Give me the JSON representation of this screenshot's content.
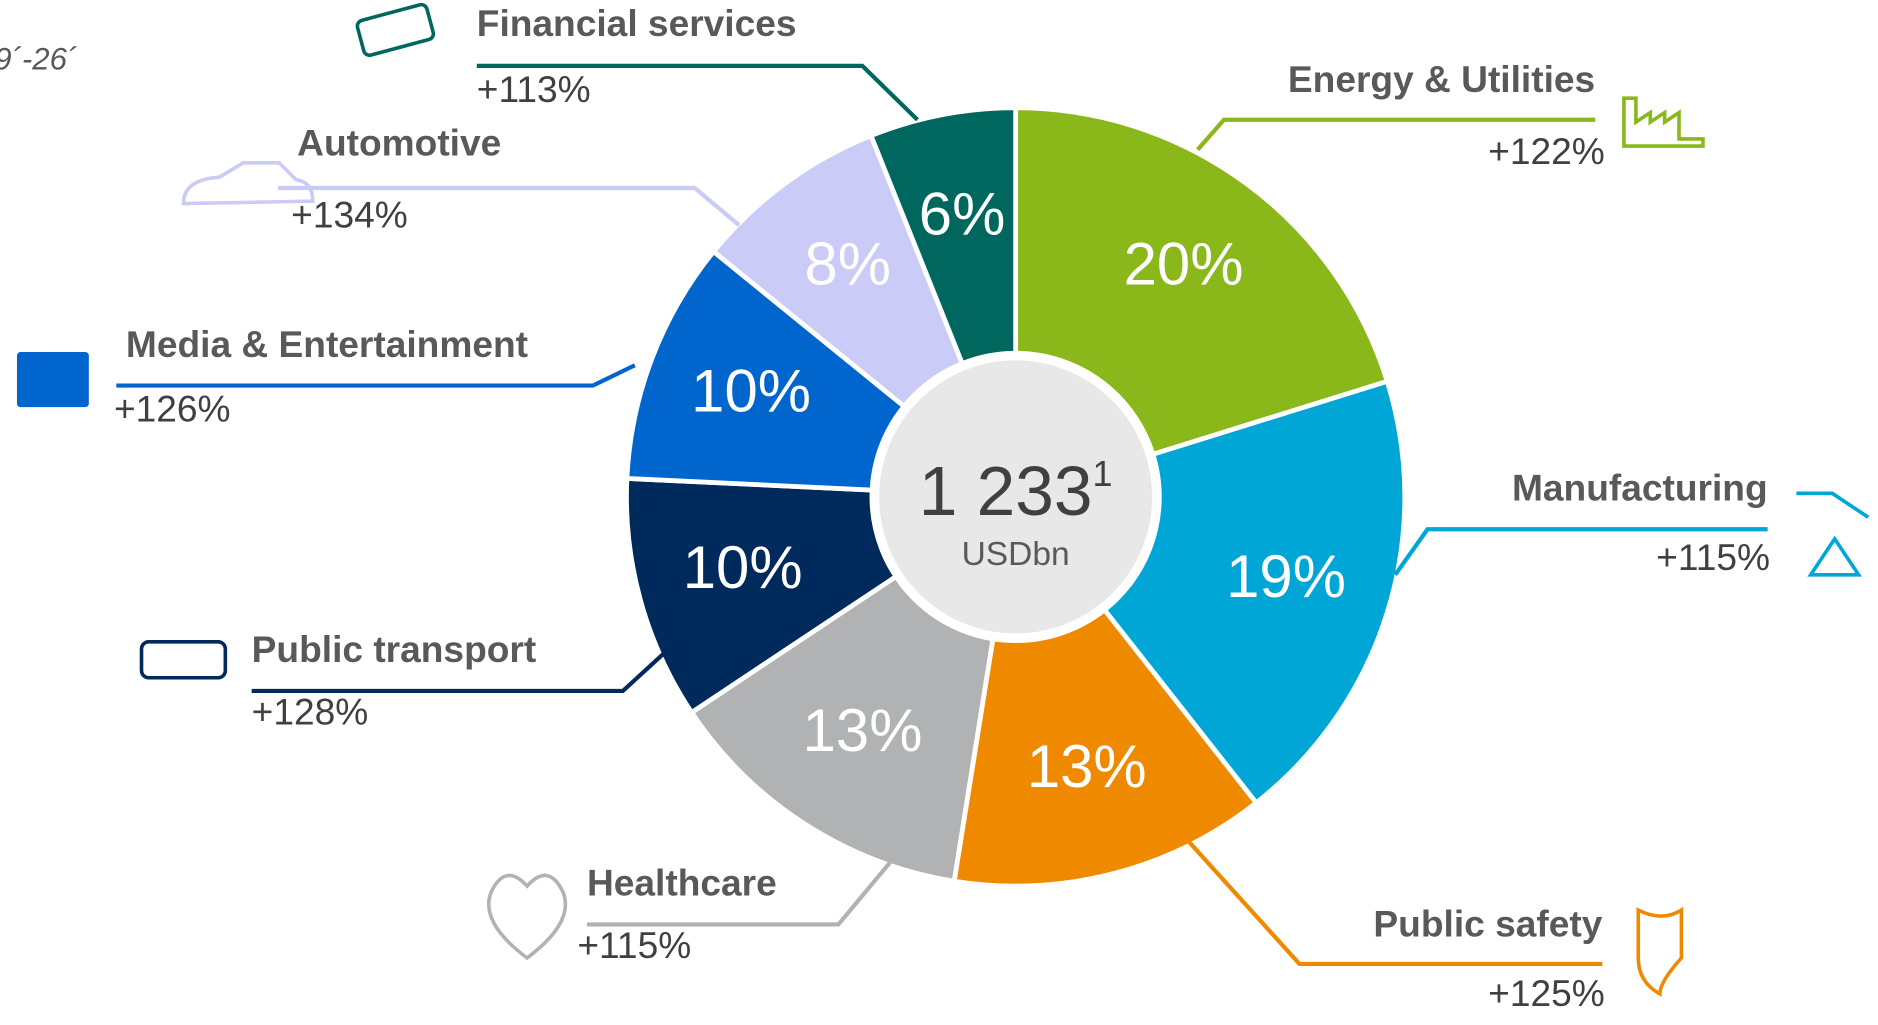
{
  "chart_data": {
    "type": "pie",
    "donut": true,
    "note": "9´-26´",
    "center_value": "1 233",
    "center_footnote": "1",
    "center_unit": "USDbn",
    "categories": [
      "Energy & Utilities",
      "Manufacturing",
      "Public safety",
      "Healthcare",
      "Public transport",
      "Media & Entertainment",
      "Automotive",
      "Financial services"
    ],
    "values": [
      20,
      19,
      13,
      13,
      10,
      10,
      8,
      6
    ],
    "value_labels": [
      "20%",
      "19%",
      "13%",
      "13%",
      "10%",
      "10%",
      "8%",
      "6%"
    ],
    "growth": [
      "+122%",
      "+115%",
      "+125%",
      "+115%",
      "+128%",
      "+126%",
      "+134%",
      "+113%"
    ],
    "colors": [
      "#8ab81b",
      "#00a6d6",
      "#ef8a00",
      "#b1b2b4",
      "#002a5c",
      "#0065cc",
      "#cbcbf7",
      "#00675f"
    ]
  }
}
